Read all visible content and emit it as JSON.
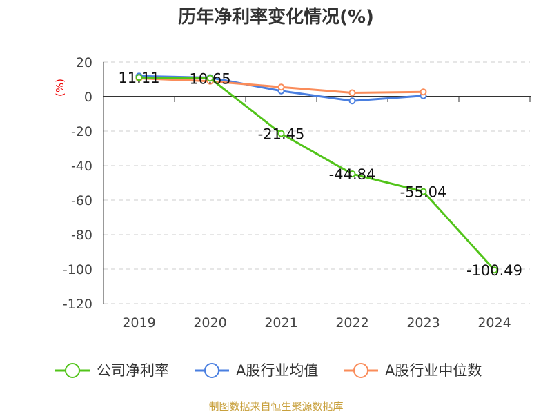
{
  "chart_data": {
    "type": "line",
    "title": "历年净利率变化情况(%)",
    "ylabel": "(%)",
    "xlabel": "",
    "categories": [
      "2019",
      "2020",
      "2021",
      "2022",
      "2023",
      "2024"
    ],
    "ylim": [
      -120,
      20
    ],
    "yticks": [
      20,
      0,
      -20,
      -40,
      -60,
      -80,
      -100,
      -120
    ],
    "grid": true,
    "legend_position": "bottom",
    "series": [
      {
        "name": "公司净利率",
        "color": "#52c41a",
        "values": [
          11.11,
          10.65,
          -21.45,
          -44.84,
          -55.04,
          -100.49
        ],
        "labels": [
          "11.11",
          "10.65",
          "-21.45",
          "-44.84",
          "-55.04",
          "-100.49"
        ]
      },
      {
        "name": "A股行业均值",
        "color": "#4a7fe0",
        "values": [
          11.9,
          11.0,
          3.3,
          -2.5,
          0.5,
          null
        ]
      },
      {
        "name": "A股行业中位数",
        "color": "#fa8c5a",
        "values": [
          10.6,
          8.9,
          5.5,
          2.2,
          2.7,
          null
        ]
      }
    ]
  },
  "source": "制图数据来自恒生聚源数据库"
}
